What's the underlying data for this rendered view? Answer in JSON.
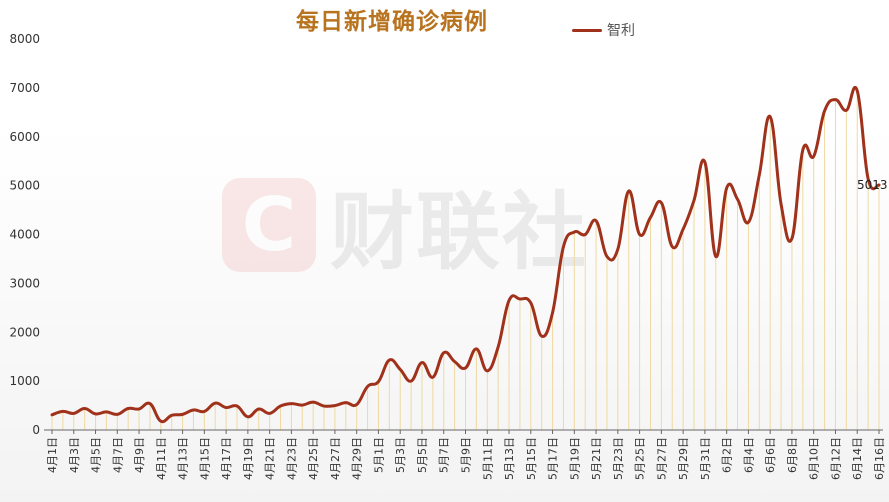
{
  "chart_data": {
    "type": "line",
    "title": "每日新增确诊病例",
    "series": [
      {
        "name": "智利",
        "color": "#a0311b",
        "values": [
          310,
          380,
          340,
          440,
          330,
          370,
          320,
          440,
          430,
          540,
          180,
          300,
          320,
          410,
          380,
          550,
          460,
          490,
          270,
          430,
          340,
          490,
          540,
          510,
          570,
          490,
          500,
          560,
          520,
          890,
          990,
          1430,
          1240,
          1000,
          1380,
          1080,
          1580,
          1400,
          1270,
          1660,
          1210,
          1700,
          2650,
          2680,
          2600,
          1920,
          2400,
          3750,
          4050,
          4000,
          4280,
          3550,
          3700,
          4890,
          4000,
          4350,
          4650,
          3750,
          4110,
          4700,
          5480,
          3550,
          4950,
          4720,
          4250,
          5220,
          6410,
          4620,
          3920,
          5730,
          5600,
          6530,
          6760,
          6540,
          6940,
          5140,
          5013
        ]
      }
    ],
    "x_tick_labels": [
      "4月1日",
      "4月3日",
      "4月5日",
      "4月7日",
      "4月9日",
      "4月11日",
      "4月13日",
      "4月15日",
      "4月17日",
      "4月19日",
      "4月21日",
      "4月23日",
      "4月25日",
      "4月27日",
      "4月29日",
      "5月1日",
      "5月3日",
      "5月5日",
      "5月7日",
      "5月9日",
      "5月11日",
      "5月13日",
      "5月15日",
      "5月17日",
      "5月19日",
      "5月21日",
      "5月23日",
      "5月25日",
      "5月27日",
      "5月29日",
      "5月31日",
      "6月2日",
      "6月4日",
      "6月6日",
      "6月8日",
      "6月10日",
      "6月12日",
      "6月14日",
      "6月16日"
    ],
    "y_ticks": [
      0,
      1000,
      2000,
      3000,
      4000,
      5000,
      6000,
      7000,
      8000
    ],
    "ylim": [
      0,
      8000
    ],
    "x_range": [
      "4月1日",
      "6月16日"
    ],
    "legend_position": "top-center",
    "data_label": "5013",
    "grid": false,
    "drop_lines": true,
    "drop_line_color": "#f0d9a2"
  },
  "watermark": {
    "logo": "C",
    "text": "财联社"
  }
}
